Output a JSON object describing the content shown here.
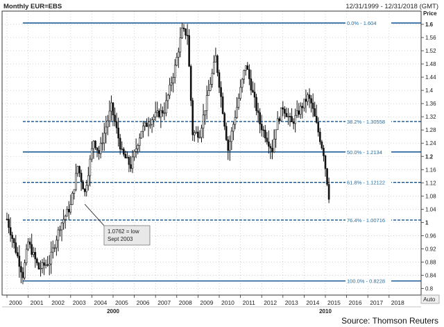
{
  "header": {
    "instrument": "Monthly EUR=EBS",
    "date_range": "12/31/1999 - 12/31/2018 (GMT)"
  },
  "axis": {
    "price_label": "Price",
    "auto_button": "Auto"
  },
  "source": "Source: Thomson Reuters",
  "colors": {
    "fib_line": "#0a4f8f",
    "fib_label": "#1a6ea8",
    "candle": "#111111",
    "frame": "#333333",
    "grid_dots": "#b5b5b5",
    "callout_fill": "#e8e8e8"
  },
  "chart_data": {
    "type": "candlestick",
    "x_axis": {
      "type": "date",
      "range": [
        "2000-01",
        "2018-12"
      ],
      "tick_labels": [
        "2000",
        "2001",
        "2002",
        "2003",
        "2004",
        "2005",
        "2006",
        "2007",
        "2008",
        "2009",
        "2010",
        "2011",
        "2012",
        "2013",
        "2014",
        "2015",
        "2016",
        "2017",
        "2018"
      ],
      "decade_labels": [
        "2000",
        "2010"
      ]
    },
    "y_axis": {
      "label": "Price",
      "range": [
        0.78,
        1.64
      ],
      "tick_labels": [
        "0.8",
        "0.84",
        "0.88",
        "0.92",
        "0.96",
        "1",
        "1.04",
        "1.08",
        "1.12",
        "1.16",
        "1.2",
        "1.24",
        "1.28",
        "1.32",
        "1.36",
        "1.4",
        "1.44",
        "1.48",
        "1.52",
        "1.56",
        "1.6"
      ],
      "bold_ticks": [
        "1",
        "1.2",
        "1.6"
      ]
    },
    "grid": true,
    "fibonacci_levels": [
      {
        "label": "0.0% - 1.604",
        "value": 1.604,
        "style": "solid"
      },
      {
        "label": "38.2% - 1.30558",
        "value": 1.30558,
        "style": "dashed"
      },
      {
        "label": "50.0% - 1.2134",
        "value": 1.2134,
        "style": "solid"
      },
      {
        "label": "61.8% - 1.12122",
        "value": 1.12122,
        "style": "dashed"
      },
      {
        "label": "76.4% - 1.00716",
        "value": 1.00716,
        "style": "dashed"
      },
      {
        "label": "100.0% - 0.8228",
        "value": 0.8228,
        "style": "solid"
      }
    ],
    "annotation": {
      "lines": [
        "1.0762 = low",
        "Sept 2003"
      ],
      "point_date": "2003-09",
      "point_value": 1.0762
    },
    "series_anchors": [
      {
        "date": "2000-01",
        "close": 1.01
      },
      {
        "date": "2000-10",
        "close": 0.84
      },
      {
        "date": "2001-01",
        "close": 0.94
      },
      {
        "date": "2001-07",
        "close": 0.86
      },
      {
        "date": "2002-01",
        "close": 0.88
      },
      {
        "date": "2002-07",
        "close": 0.99
      },
      {
        "date": "2003-01",
        "close": 1.05
      },
      {
        "date": "2003-05",
        "close": 1.17
      },
      {
        "date": "2003-09",
        "close": 1.09
      },
      {
        "date": "2004-02",
        "close": 1.25
      },
      {
        "date": "2004-05",
        "close": 1.21
      },
      {
        "date": "2004-12",
        "close": 1.35
      },
      {
        "date": "2005-06",
        "close": 1.21
      },
      {
        "date": "2005-11",
        "close": 1.17
      },
      {
        "date": "2006-05",
        "close": 1.28
      },
      {
        "date": "2006-12",
        "close": 1.32
      },
      {
        "date": "2007-06",
        "close": 1.34
      },
      {
        "date": "2007-12",
        "close": 1.47
      },
      {
        "date": "2008-04",
        "close": 1.58
      },
      {
        "date": "2008-07",
        "close": 1.57
      },
      {
        "date": "2008-10",
        "close": 1.27
      },
      {
        "date": "2009-02",
        "close": 1.27
      },
      {
        "date": "2009-11",
        "close": 1.5
      },
      {
        "date": "2010-06",
        "close": 1.22
      },
      {
        "date": "2011-04",
        "close": 1.48
      },
      {
        "date": "2011-12",
        "close": 1.3
      },
      {
        "date": "2012-07",
        "close": 1.22
      },
      {
        "date": "2012-09",
        "close": 1.29
      },
      {
        "date": "2013-01",
        "close": 1.35
      },
      {
        "date": "2013-06",
        "close": 1.3
      },
      {
        "date": "2014-03",
        "close": 1.38
      },
      {
        "date": "2014-05",
        "close": 1.36
      },
      {
        "date": "2014-12",
        "close": 1.21
      },
      {
        "date": "2015-03",
        "close": 1.08
      }
    ]
  }
}
